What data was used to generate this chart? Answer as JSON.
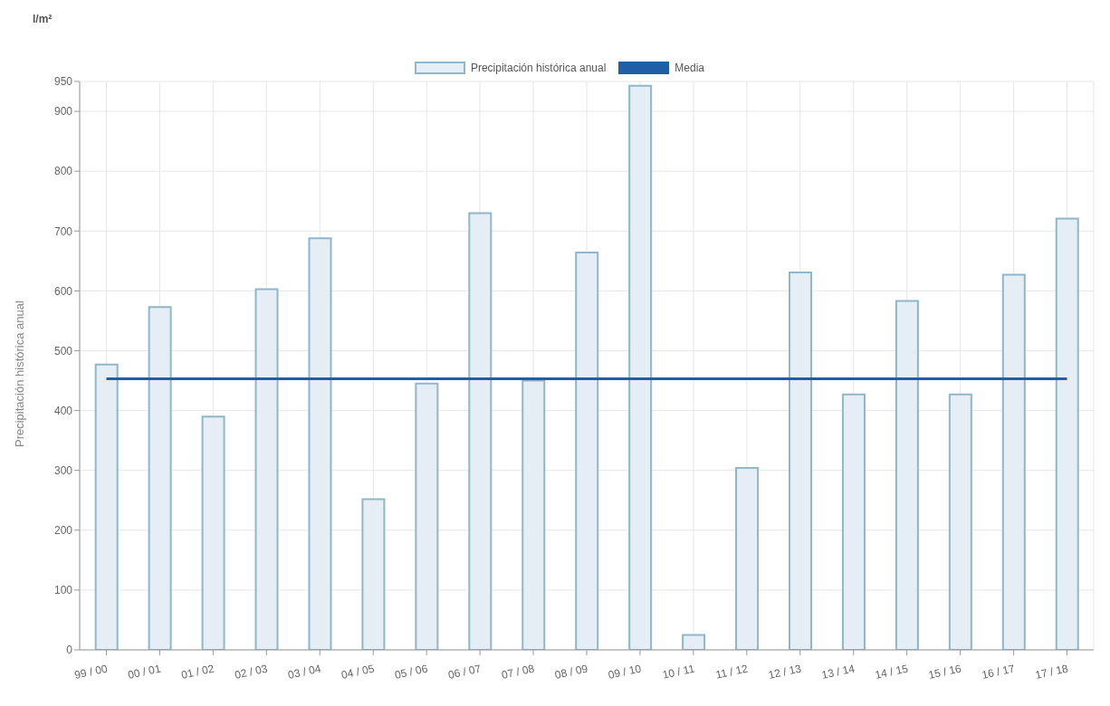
{
  "chart_data": {
    "type": "bar",
    "ylabel": "Precipitación histórica anual",
    "annotations": [
      "l/m²"
    ],
    "categories": [
      "99 / 00",
      "00 / 01",
      "01 / 02",
      "02 / 03",
      "03 / 04",
      "04 / 05",
      "05 / 06",
      "06 / 07",
      "07 / 08",
      "08 / 09",
      "09 / 10",
      "10 / 11",
      "11 / 12",
      "12 / 13",
      "13 / 14",
      "14 / 15",
      "15 / 16",
      "16 / 17",
      "17 / 18"
    ],
    "series": [
      {
        "name": "Precipitación histórica anual",
        "color": "#e4eef4",
        "values": [
          477,
          573,
          390,
          603,
          688,
          252,
          445,
          730,
          450,
          664,
          943,
          25,
          304,
          631,
          427,
          583,
          427,
          627,
          721
        ]
      },
      {
        "name": "Media",
        "type": "line",
        "color": "#1f5fa8",
        "values": [
          453,
          453,
          453,
          453,
          453,
          453,
          453,
          453,
          453,
          453,
          453,
          453,
          453,
          453,
          453,
          453,
          453,
          453,
          453
        ]
      }
    ],
    "ylim": [
      0,
      950
    ],
    "yticks": [
      0,
      100,
      200,
      300,
      400,
      500,
      600,
      700,
      800,
      900,
      950
    ],
    "grid": true,
    "legend": "top"
  }
}
